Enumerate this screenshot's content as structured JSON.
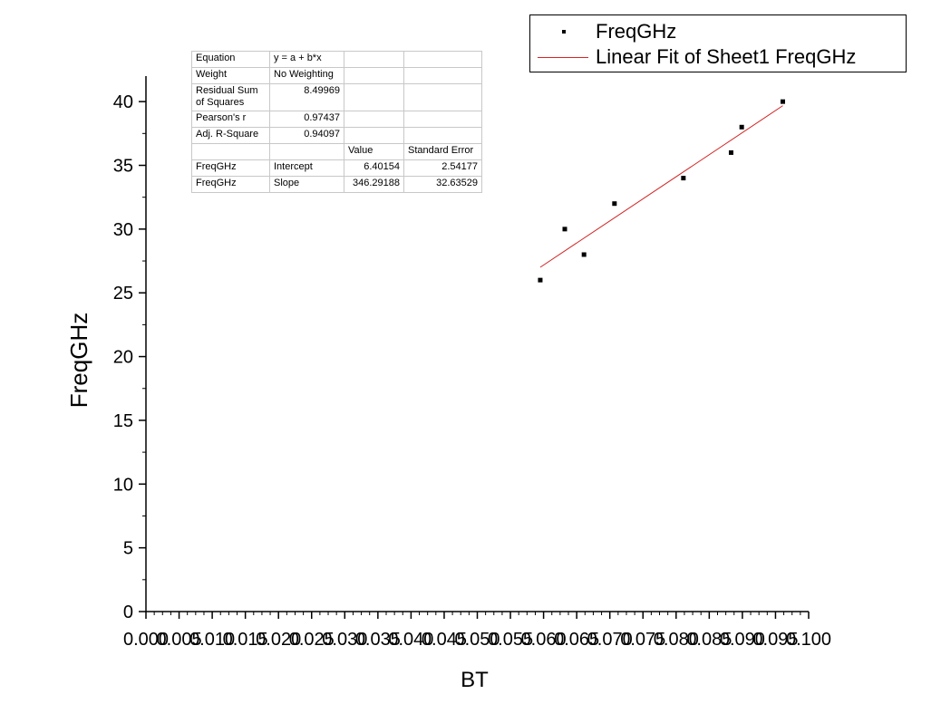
{
  "chart_data": {
    "type": "scatter",
    "xlabel": "BT",
    "ylabel": "FreqGHz",
    "xlim": [
      0.0,
      0.1
    ],
    "ylim": [
      0,
      42
    ],
    "x_ticks": [
      "0.000",
      "0.005",
      "0.010",
      "0.015",
      "0.020",
      "0.025",
      "0.030",
      "0.035",
      "0.040",
      "0.045",
      "0.050",
      "0.055",
      "0.060",
      "0.065",
      "0.070",
      "0.075",
      "0.080",
      "0.085",
      "0.090",
      "0.095",
      "0.100"
    ],
    "y_ticks": [
      "0",
      "5",
      "10",
      "15",
      "20",
      "25",
      "30",
      "35",
      "40"
    ],
    "series": [
      {
        "name": "FreqGHz",
        "kind": "scatter",
        "color": "#000000",
        "points": [
          [
            0.0595,
            26
          ],
          [
            0.0632,
            30
          ],
          [
            0.0661,
            28
          ],
          [
            0.0707,
            32
          ],
          [
            0.0811,
            34
          ],
          [
            0.0883,
            36
          ],
          [
            0.0899,
            38
          ],
          [
            0.0961,
            40
          ]
        ]
      },
      {
        "name": "Linear Fit of Sheet1 FreqGHz",
        "kind": "line",
        "color": "#d22222",
        "intercept": 6.40154,
        "slope": 346.29188,
        "x_range": [
          0.0595,
          0.0961
        ]
      }
    ],
    "legend_position": "top-right"
  },
  "stats_table": {
    "rows": [
      [
        "Equation",
        "y = a + b*x",
        "",
        ""
      ],
      [
        "Weight",
        "No Weighting",
        "",
        ""
      ],
      [
        "Residual Sum of Squares",
        "8.49969",
        "",
        ""
      ],
      [
        "Pearson's r",
        "0.97437",
        "",
        ""
      ],
      [
        "Adj. R-Square",
        "0.94097",
        "",
        ""
      ],
      [
        "",
        "",
        "Value",
        "Standard Error"
      ],
      [
        "FreqGHz",
        "Intercept",
        "6.40154",
        "2.54177"
      ],
      [
        "FreqGHz",
        "Slope",
        "346.29188",
        "32.63529"
      ]
    ]
  }
}
